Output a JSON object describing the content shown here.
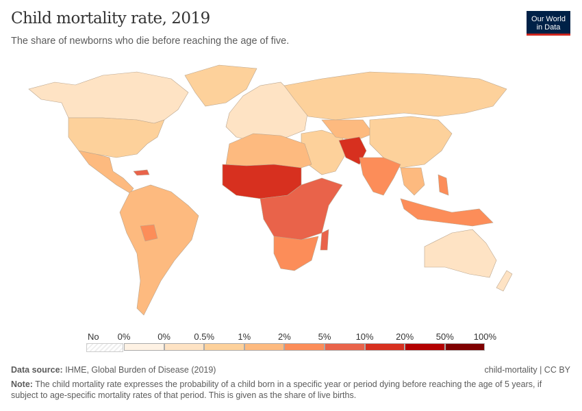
{
  "header": {
    "title": "Child mortality rate, 2019",
    "subtitle": "The share of newborns who die before reaching the age of five.",
    "logo_line1": "Our World",
    "logo_line2": "in Data"
  },
  "legend": {
    "no_data_label": "No data",
    "tick_labels": [
      "0%",
      "0%",
      "0.5%",
      "1%",
      "2%",
      "5%",
      "10%",
      "20%",
      "50%",
      "100%"
    ],
    "bin_colors": [
      "#fef2e4",
      "#fee3c4",
      "#fdd19b",
      "#fdba7f",
      "#fc8d59",
      "#e9634a",
      "#d7301f",
      "#b30000",
      "#7f0000"
    ]
  },
  "footer": {
    "source_label": "Data source:",
    "source_text": "IHME, Global Burden of Disease (2019)",
    "slug": "child-mortality | CC BY",
    "note_label": "Note:",
    "note_text": "The child mortality rate expresses the probability of a child born in a specific year or period dying before reaching the age of 5 years, if subject to age-specific mortality rates of that period. This is given as the share of live births."
  }
}
